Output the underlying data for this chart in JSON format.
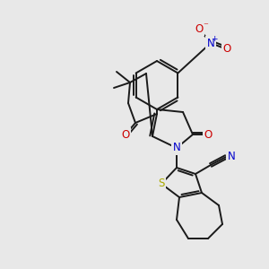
{
  "bg_color": "#e8e8e8",
  "bond_color": "#1a1a1a",
  "bond_width": 1.4,
  "atom_colors": {
    "N": "#0000cc",
    "O": "#cc0000",
    "S": "#aaaa00",
    "C": "#1a1a1a"
  }
}
